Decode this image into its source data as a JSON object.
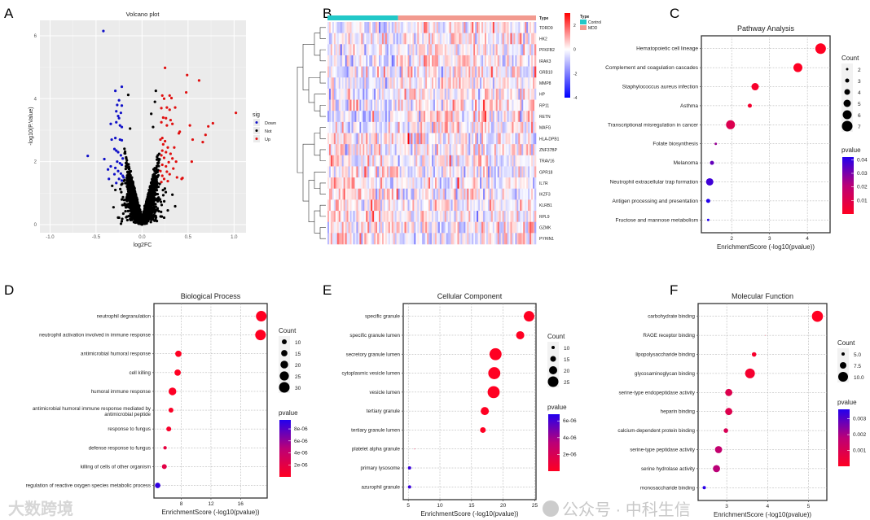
{
  "panel_labels": [
    "A",
    "B",
    "C",
    "D",
    "E",
    "F"
  ],
  "watermarks": {
    "left": "大数跨境",
    "right": "公众号 · 中科生信"
  },
  "colors": {
    "down": "#1010c8",
    "up": "#e01010",
    "not": "#000000",
    "control": "#22c8c8",
    "mdd": "#f29a8f",
    "low_p": "#ff0000",
    "high_p": "#0000ff"
  },
  "chart_data": [
    {
      "type": "scatter",
      "id": "volcano",
      "title": "Volcano plot",
      "xlabel": "log2FC",
      "ylabel": "-log10(P.Value)",
      "xlim": [
        -1.11,
        1.13
      ],
      "ylim": [
        -0.26,
        6.49
      ],
      "xticks": [
        -1.0,
        -0.5,
        0.0,
        0.5,
        1.0
      ],
      "xtick_labels": [
        "-1.0",
        "-0.5",
        "0.0",
        "0.5",
        "1.0"
      ],
      "yticks": [
        0,
        2,
        4,
        6
      ],
      "ytick_labels": [
        "0",
        "2",
        "4",
        "6"
      ],
      "legend": {
        "title": "sig",
        "position": "right",
        "entries": [
          "Down",
          "Not",
          "Up"
        ]
      },
      "series": [
        {
          "name": "Down",
          "points": [
            [
              -0.42,
              6.15
            ],
            [
              -0.22,
              4.38
            ],
            [
              -0.29,
              4.25
            ],
            [
              -0.25,
              3.95
            ],
            [
              -0.27,
              3.8
            ],
            [
              -0.22,
              3.78
            ],
            [
              -0.28,
              3.6
            ],
            [
              -0.23,
              3.55
            ],
            [
              -0.26,
              3.45
            ],
            [
              -0.25,
              3.38
            ],
            [
              -0.34,
              3.2
            ],
            [
              -0.28,
              3.25
            ],
            [
              -0.24,
              3.15
            ],
            [
              -0.22,
              3.1
            ],
            [
              -0.33,
              2.7
            ],
            [
              -0.29,
              2.75
            ],
            [
              -0.24,
              2.7
            ],
            [
              -0.22,
              2.68
            ],
            [
              -0.3,
              2.4
            ],
            [
              -0.28,
              2.35
            ],
            [
              -0.26,
              2.3
            ],
            [
              -0.23,
              2.2
            ],
            [
              -0.21,
              2.1
            ],
            [
              -0.59,
              2.18
            ],
            [
              -0.41,
              2.08
            ],
            [
              -0.27,
              2.0
            ],
            [
              -0.24,
              1.95
            ],
            [
              -0.22,
              1.9
            ],
            [
              -0.34,
              1.85
            ],
            [
              -0.29,
              1.8
            ],
            [
              -0.37,
              1.75
            ],
            [
              -0.26,
              1.7
            ],
            [
              -0.23,
              1.62
            ],
            [
              -0.21,
              1.55
            ],
            [
              -0.3,
              1.6
            ],
            [
              -0.36,
              1.45
            ],
            [
              -0.25,
              1.45
            ],
            [
              -0.22,
              1.4
            ],
            [
              -0.28,
              1.32
            ],
            [
              -0.2,
              1.5
            ]
          ]
        },
        {
          "name": "Up",
          "points": [
            [
              0.25,
              4.98
            ],
            [
              0.49,
              4.75
            ],
            [
              0.62,
              4.58
            ],
            [
              0.48,
              4.2
            ],
            [
              0.22,
              4.1
            ],
            [
              0.3,
              4.1
            ],
            [
              0.24,
              4.0
            ],
            [
              0.32,
              4.02
            ],
            [
              0.27,
              3.72
            ],
            [
              0.21,
              3.7
            ],
            [
              0.36,
              3.72
            ],
            [
              0.3,
              3.65
            ],
            [
              1.02,
              3.55
            ],
            [
              0.23,
              3.4
            ],
            [
              0.26,
              3.38
            ],
            [
              0.31,
              3.32
            ],
            [
              0.77,
              3.22
            ],
            [
              0.21,
              3.25
            ],
            [
              0.27,
              3.15
            ],
            [
              0.33,
              3.2
            ],
            [
              0.52,
              3.15
            ],
            [
              0.72,
              3.12
            ],
            [
              0.41,
              2.95
            ],
            [
              0.4,
              2.9
            ],
            [
              0.69,
              2.85
            ],
            [
              0.22,
              2.75
            ],
            [
              0.2,
              2.7
            ],
            [
              0.25,
              2.65
            ],
            [
              0.55,
              2.7
            ],
            [
              0.66,
              2.62
            ],
            [
              0.23,
              2.55
            ],
            [
              0.28,
              2.45
            ],
            [
              0.35,
              2.45
            ],
            [
              0.22,
              2.35
            ],
            [
              0.26,
              2.3
            ],
            [
              0.31,
              2.25
            ],
            [
              0.21,
              2.2
            ],
            [
              0.24,
              2.12
            ],
            [
              0.33,
              2.1
            ],
            [
              0.37,
              2.0
            ],
            [
              0.54,
              2.0
            ],
            [
              0.29,
              1.98
            ],
            [
              0.22,
              1.9
            ],
            [
              0.26,
              1.85
            ],
            [
              0.34,
              1.78
            ],
            [
              0.2,
              1.7
            ],
            [
              0.27,
              1.68
            ],
            [
              0.3,
              1.6
            ],
            [
              0.22,
              1.55
            ],
            [
              0.38,
              1.5
            ],
            [
              0.44,
              1.48
            ],
            [
              0.43,
              1.45
            ],
            [
              0.24,
              1.45
            ],
            [
              0.28,
              1.38
            ],
            [
              0.21,
              1.35
            ]
          ]
        },
        {
          "name": "Not",
          "points": [
            [
              0.15,
              4.25
            ],
            [
              -0.15,
              4.12
            ],
            [
              0.14,
              3.9
            ],
            [
              0.1,
              3.52
            ],
            [
              -0.13,
              3.05
            ],
            [
              0.12,
              3.1
            ],
            [
              -0.31,
              0.55
            ],
            [
              0.36,
              0.58
            ],
            [
              0.28,
              0.45
            ],
            [
              -0.25,
              0.22
            ],
            [
              0.24,
              0.22
            ],
            [
              -0.29,
              1.1
            ],
            [
              0.33,
              0.95
            ]
          ],
          "cloud": {
            "count": 3200,
            "sd_log2fc": 0.075,
            "slope": 12.5,
            "max_abs_log2fc": 0.2
          }
        }
      ]
    },
    {
      "type": "heatmap",
      "id": "heatmap",
      "row_labels": [
        "TDRD9",
        "HK2",
        "PFKFB2",
        "IRAK3",
        "GRB10",
        "MMP8",
        "HP",
        "RP11",
        "RETN",
        "MAFG",
        "HLA-DPB1",
        "ZNF37BP",
        "TRAV16",
        "GPR18",
        "IL7R",
        "IKZF3",
        "KLRB1",
        "RPL9",
        "GZMK",
        "PYHIN1"
      ],
      "annotation_label": "Type",
      "groups": [
        {
          "name": "Control",
          "fraction": 0.335
        },
        {
          "name": "MDD",
          "fraction": 0.665
        }
      ],
      "legend_title": "Type",
      "colorbar": {
        "range": [
          -4,
          3
        ],
        "ticks": [
          2,
          0,
          -2,
          -4
        ],
        "tick_labels": [
          "2",
          "0",
          "-2",
          "-4"
        ]
      },
      "columns": 130,
      "row_trend_mdd": [
        0.5,
        0.4,
        0.5,
        0.4,
        0.3,
        0.5,
        0.5,
        0.3,
        0.5,
        0.4,
        -0.3,
        -0.3,
        -0.2,
        -0.4,
        -0.4,
        -0.4,
        -0.4,
        -0.2,
        -0.4,
        -0.3
      ]
    },
    {
      "type": "scatter",
      "id": "pathway",
      "title": "Pathway Analysis",
      "xlabel": "EnrichmentScore (-log10(pvalue))",
      "xlim": [
        1.2,
        4.6
      ],
      "xticks": [
        2,
        3,
        4
      ],
      "xtick_labels": [
        "2",
        "3",
        "4"
      ],
      "count_legend": {
        "title": "Count",
        "values": [
          2,
          3,
          4,
          5,
          6,
          7
        ],
        "labels": [
          "2",
          "3",
          "4",
          "5",
          "6",
          "7"
        ]
      },
      "pvalue_legend": {
        "title": "pvalue",
        "range": [
          0,
          0.042
        ],
        "ticks": [
          0.04,
          0.03,
          0.02,
          0.01
        ],
        "labels": [
          "0.04",
          "0.03",
          "0.02",
          "0.01"
        ]
      },
      "terms": [
        {
          "term": "Hematopoietic cell lineage",
          "score": 4.35,
          "count": 7,
          "pvalue": 4.5e-05
        },
        {
          "term": "Complement and coagulation cascades",
          "score": 3.75,
          "count": 6,
          "pvalue": 0.00018
        },
        {
          "term": "Staphylococcus aureus infection",
          "score": 2.62,
          "count": 5,
          "pvalue": 0.0024
        },
        {
          "term": "Asthma",
          "score": 2.48,
          "count": 3,
          "pvalue": 0.0033
        },
        {
          "term": "Transcriptional misregulation in cancer",
          "score": 1.97,
          "count": 6,
          "pvalue": 0.011
        },
        {
          "term": "Folate biosynthesis",
          "score": 1.58,
          "count": 2,
          "pvalue": 0.026
        },
        {
          "term": "Melanoma",
          "score": 1.48,
          "count": 3,
          "pvalue": 0.033
        },
        {
          "term": "Neutrophil extracellular trap formation",
          "score": 1.42,
          "count": 5,
          "pvalue": 0.038
        },
        {
          "term": "Antigen processing and presentation",
          "score": 1.38,
          "count": 3,
          "pvalue": 0.042
        },
        {
          "term": "Fructose and mannose metabolism",
          "score": 1.38,
          "count": 2,
          "pvalue": 0.042
        }
      ]
    },
    {
      "type": "scatter",
      "id": "bp",
      "title": "Biological Process",
      "xlabel": "EnrichmentScore (-log10(pvalue))",
      "xlim": [
        4.3,
        19.6
      ],
      "xticks": [
        8,
        12,
        16
      ],
      "xtick_labels": [
        "8",
        "12",
        "16"
      ],
      "count_legend": {
        "title": "Count",
        "values": [
          10,
          15,
          20,
          25,
          30
        ],
        "labels": [
          "10",
          "15",
          "20",
          "25",
          "30"
        ]
      },
      "pvalue_legend": {
        "title": "pvalue",
        "range": [
          0,
          9.5e-06
        ],
        "ticks": [
          8e-06,
          6e-06,
          4e-06,
          2e-06
        ],
        "labels": [
          "8e-06",
          "6e-06",
          "4e-06",
          "2e-06"
        ]
      },
      "terms": [
        {
          "term": "neutrophil degranulation",
          "score": 18.8,
          "count": 30,
          "pvalue": 1.6e-19
        },
        {
          "term": "neutrophil activation involved in immune response",
          "score": 18.7,
          "count": 30,
          "pvalue": 2e-19
        },
        {
          "term": "antimicrobial humoral response",
          "score": 7.6,
          "count": 15,
          "pvalue": 2.5e-08
        },
        {
          "term": "cell killing",
          "score": 7.5,
          "count": 15,
          "pvalue": 3.2e-08
        },
        {
          "term": "humoral immune response",
          "score": 6.8,
          "count": 20,
          "pvalue": 1.6e-07
        },
        {
          "term": "antimicrobial humoral immune response mediated by antimicrobial peptide",
          "score": 6.6,
          "count": 10,
          "pvalue": 2.5e-07
        },
        {
          "term": "response to fungus",
          "score": 6.3,
          "count": 10,
          "pvalue": 5e-07
        },
        {
          "term": "defense response to fungus",
          "score": 5.8,
          "count": 5,
          "pvalue": 1.6e-06
        },
        {
          "term": "killing of cells of other organism",
          "score": 5.7,
          "count": 10,
          "pvalue": 2e-06
        },
        {
          "term": "regulation of reactive oxygen species metabolic process",
          "score": 4.8,
          "count": 12,
          "pvalue": 9e-06
        }
      ]
    },
    {
      "type": "scatter",
      "id": "cc",
      "title": "Cellular Component",
      "xlabel": "EnrichmentScore (-log10(pvalue))",
      "xlim": [
        4.2,
        25.2
      ],
      "xticks": [
        5,
        10,
        15,
        20,
        25
      ],
      "xtick_labels": [
        "5",
        "10",
        "15",
        "20",
        "25"
      ],
      "count_legend": {
        "title": "Count",
        "values": [
          10,
          15,
          20,
          25
        ],
        "labels": [
          "10",
          "15",
          "20",
          "25"
        ]
      },
      "pvalue_legend": {
        "title": "pvalue",
        "range": [
          0,
          6.8e-06
        ],
        "ticks": [
          6e-06,
          4e-06,
          2e-06
        ],
        "labels": [
          "6e-06",
          "4e-06",
          "2e-06"
        ]
      },
      "terms": [
        {
          "term": "specific granule",
          "score": 24.1,
          "count": 25,
          "pvalue": 8e-25
        },
        {
          "term": "specific granule lumen",
          "score": 22.7,
          "count": 20,
          "pvalue": 2e-23
        },
        {
          "term": "secretory granule lumen",
          "score": 18.8,
          "count": 28,
          "pvalue": 1.6e-19
        },
        {
          "term": "cytoplasmic vesicle lumen",
          "score": 18.6,
          "count": 28,
          "pvalue": 2.5e-19
        },
        {
          "term": "vesicle lumen",
          "score": 18.5,
          "count": 28,
          "pvalue": 3.2e-19
        },
        {
          "term": "tertiary granule",
          "score": 17.1,
          "count": 20,
          "pvalue": 8e-18
        },
        {
          "term": "tertiary granule lumen",
          "score": 16.8,
          "count": 15,
          "pvalue": 1.6e-17
        },
        {
          "term": "platelet alpha granule",
          "score": 6.0,
          "count": 5,
          "pvalue": 1e-06
        },
        {
          "term": "primary lysosome",
          "score": 5.2,
          "count": 10,
          "pvalue": 6.3e-06
        },
        {
          "term": "azurophil granule",
          "score": 5.2,
          "count": 10,
          "pvalue": 6.3e-06
        }
      ]
    },
    {
      "type": "scatter",
      "id": "mf",
      "title": "Molecular Function",
      "xlabel": "EnrichmentScore (-log10(pvalue))",
      "xlim": [
        2.3,
        5.45
      ],
      "xticks": [
        3,
        4,
        5
      ],
      "xtick_labels": [
        "3",
        "4",
        "5"
      ],
      "count_legend": {
        "title": "Count",
        "values": [
          5,
          7.5,
          10
        ],
        "labels": [
          "5.0",
          "7.5",
          "10.0"
        ]
      },
      "pvalue_legend": {
        "title": "pvalue",
        "range": [
          0,
          0.0036
        ],
        "ticks": [
          0.003,
          0.002,
          0.001
        ],
        "labels": [
          "0.003",
          "0.002",
          "0.001"
        ]
      },
      "terms": [
        {
          "term": "carbohydrate binding",
          "score": 5.22,
          "count": 11,
          "pvalue": 6e-06
        },
        {
          "term": "RAGE receptor binding",
          "score": 3.95,
          "count": 3,
          "pvalue": 0.00011
        },
        {
          "term": "lipopolysaccharide binding",
          "score": 3.67,
          "count": 6,
          "pvalue": 0.00021
        },
        {
          "term": "glycosaminoglycan binding",
          "score": 3.57,
          "count": 10,
          "pvalue": 0.00027
        },
        {
          "term": "serine-type endopeptidase activity",
          "score": 3.05,
          "count": 8,
          "pvalue": 0.0009
        },
        {
          "term": "heparin binding",
          "score": 3.05,
          "count": 8,
          "pvalue": 0.0009
        },
        {
          "term": "calcium-dependent protein binding",
          "score": 2.98,
          "count": 6,
          "pvalue": 0.00105
        },
        {
          "term": "serine-type peptidase activity",
          "score": 2.8,
          "count": 8,
          "pvalue": 0.0016
        },
        {
          "term": "serine hydrolase activity",
          "score": 2.75,
          "count": 8,
          "pvalue": 0.0018
        },
        {
          "term": "monosaccharide binding",
          "score": 2.45,
          "count": 5,
          "pvalue": 0.0035
        }
      ]
    }
  ]
}
